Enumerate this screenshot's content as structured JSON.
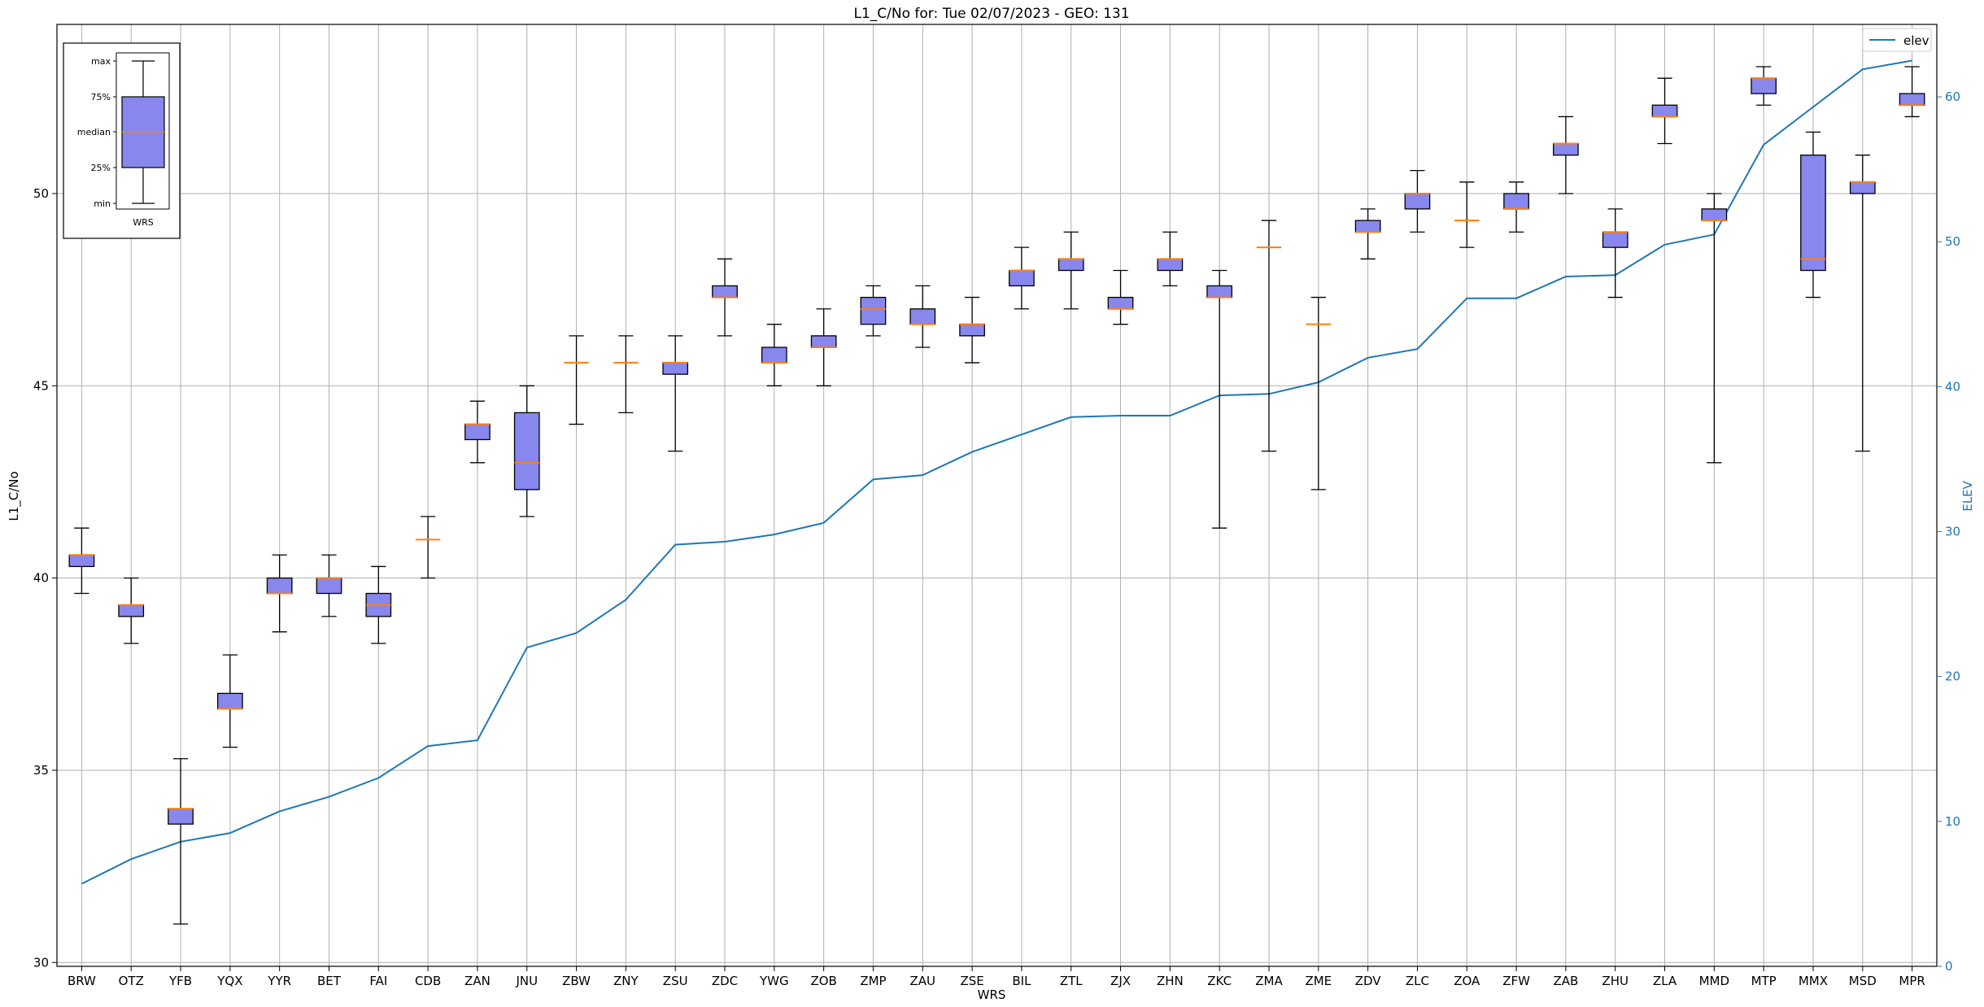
{
  "chart_data": {
    "type": "boxplot",
    "title": "L1_C/No for: Tue 02/07/2023 - GEO: 131",
    "xlabel": "WRS",
    "ylabel": "L1_C/No",
    "ylabel_right": "ELEV",
    "ylim": [
      29.9,
      54.4
    ],
    "ylim_right": [
      0,
      65
    ],
    "yticks": [
      30,
      35,
      40,
      45,
      50
    ],
    "yticks_right": [
      0,
      10,
      20,
      30,
      40,
      50,
      60
    ],
    "grid": true,
    "legend": {
      "placement": "top-right",
      "entries": [
        "elev"
      ]
    },
    "colors": {
      "box_fill": "#8787ee",
      "median": "#ff7f0e",
      "elev_line": "#1f77b4",
      "grid": "#b0b0b0"
    },
    "categories": [
      "BRW",
      "OTZ",
      "YFB",
      "YQX",
      "YYR",
      "BET",
      "FAI",
      "CDB",
      "ZAN",
      "JNU",
      "ZBW",
      "ZNY",
      "ZSU",
      "ZDC",
      "YWG",
      "ZOB",
      "ZMP",
      "ZAU",
      "ZSE",
      "BIL",
      "ZTL",
      "ZJX",
      "ZHN",
      "ZKC",
      "ZMA",
      "ZME",
      "ZDV",
      "ZLC",
      "ZOA",
      "ZFW",
      "ZAB",
      "ZHU",
      "ZLA",
      "MMD",
      "MTP",
      "MMX",
      "MSD",
      "MPR"
    ],
    "boxes": [
      {
        "min": 39.6,
        "q1": 40.3,
        "median": 40.6,
        "q3": 40.6,
        "max": 41.3
      },
      {
        "min": 38.3,
        "q1": 39.0,
        "median": 39.3,
        "q3": 39.3,
        "max": 40.0
      },
      {
        "min": 31.0,
        "q1": 33.6,
        "median": 34.0,
        "q3": 34.0,
        "max": 35.3
      },
      {
        "min": 35.6,
        "q1": 36.6,
        "median": 36.6,
        "q3": 37.0,
        "max": 38.0
      },
      {
        "min": 38.6,
        "q1": 39.6,
        "median": 39.6,
        "q3": 40.0,
        "max": 40.6
      },
      {
        "min": 39.0,
        "q1": 39.6,
        "median": 40.0,
        "q3": 40.0,
        "max": 40.6
      },
      {
        "min": 38.3,
        "q1": 39.0,
        "median": 39.3,
        "q3": 39.6,
        "max": 40.3
      },
      {
        "min": 40.0,
        "q1": 41.0,
        "median": 41.0,
        "q3": 41.0,
        "max": 41.6
      },
      {
        "min": 43.0,
        "q1": 43.6,
        "median": 44.0,
        "q3": 44.0,
        "max": 44.6
      },
      {
        "min": 41.6,
        "q1": 42.3,
        "median": 43.0,
        "q3": 44.3,
        "max": 45.0
      },
      {
        "min": 44.0,
        "q1": 45.6,
        "median": 45.6,
        "q3": 45.6,
        "max": 46.3
      },
      {
        "min": 44.3,
        "q1": 45.6,
        "median": 45.6,
        "q3": 45.6,
        "max": 46.3
      },
      {
        "min": 43.3,
        "q1": 45.3,
        "median": 45.6,
        "q3": 45.6,
        "max": 46.3
      },
      {
        "min": 46.3,
        "q1": 47.3,
        "median": 47.3,
        "q3": 47.6,
        "max": 48.3
      },
      {
        "min": 45.0,
        "q1": 45.6,
        "median": 45.6,
        "q3": 46.0,
        "max": 46.6
      },
      {
        "min": 45.0,
        "q1": 46.0,
        "median": 46.0,
        "q3": 46.3,
        "max": 47.0
      },
      {
        "min": 46.3,
        "q1": 46.6,
        "median": 47.0,
        "q3": 47.3,
        "max": 47.6
      },
      {
        "min": 46.0,
        "q1": 46.6,
        "median": 46.6,
        "q3": 47.0,
        "max": 47.6
      },
      {
        "min": 45.6,
        "q1": 46.3,
        "median": 46.6,
        "q3": 46.6,
        "max": 47.3
      },
      {
        "min": 47.0,
        "q1": 47.6,
        "median": 48.0,
        "q3": 48.0,
        "max": 48.6
      },
      {
        "min": 47.0,
        "q1": 48.0,
        "median": 48.3,
        "q3": 48.3,
        "max": 49.0
      },
      {
        "min": 46.6,
        "q1": 47.0,
        "median": 47.0,
        "q3": 47.3,
        "max": 48.0
      },
      {
        "min": 47.6,
        "q1": 48.0,
        "median": 48.3,
        "q3": 48.3,
        "max": 49.0
      },
      {
        "min": 41.3,
        "q1": 47.3,
        "median": 47.3,
        "q3": 47.6,
        "max": 48.0
      },
      {
        "min": 43.3,
        "q1": 48.6,
        "median": 48.6,
        "q3": 48.6,
        "max": 49.3
      },
      {
        "min": 42.3,
        "q1": 46.6,
        "median": 46.6,
        "q3": 46.6,
        "max": 47.3
      },
      {
        "min": 48.3,
        "q1": 49.0,
        "median": 49.0,
        "q3": 49.3,
        "max": 49.6
      },
      {
        "min": 49.0,
        "q1": 49.6,
        "median": 50.0,
        "q3": 50.0,
        "max": 50.6
      },
      {
        "min": 48.6,
        "q1": 49.3,
        "median": 49.3,
        "q3": 49.3,
        "max": 50.3
      },
      {
        "min": 49.0,
        "q1": 49.6,
        "median": 49.6,
        "q3": 50.0,
        "max": 50.3
      },
      {
        "min": 50.0,
        "q1": 51.0,
        "median": 51.3,
        "q3": 51.3,
        "max": 52.0
      },
      {
        "min": 47.3,
        "q1": 48.6,
        "median": 49.0,
        "q3": 49.0,
        "max": 49.6
      },
      {
        "min": 51.3,
        "q1": 52.0,
        "median": 52.0,
        "q3": 52.3,
        "max": 53.0
      },
      {
        "min": 43.0,
        "q1": 49.3,
        "median": 49.3,
        "q3": 49.6,
        "max": 50.0
      },
      {
        "min": 52.3,
        "q1": 52.6,
        "median": 53.0,
        "q3": 53.0,
        "max": 53.3
      },
      {
        "min": 47.3,
        "q1": 48.0,
        "median": 48.3,
        "q3": 51.0,
        "max": 51.6
      },
      {
        "min": 43.3,
        "q1": 50.0,
        "median": 50.3,
        "q3": 50.3,
        "max": 51.0
      },
      {
        "min": 52.0,
        "q1": 52.3,
        "median": 52.3,
        "q3": 52.6,
        "max": 53.3
      }
    ],
    "elev": {
      "name": "elev",
      "values": [
        5.7,
        7.4,
        8.6,
        9.2,
        10.7,
        11.7,
        13.0,
        15.2,
        15.6,
        22.0,
        23.0,
        25.3,
        29.1,
        29.3,
        29.8,
        30.6,
        33.6,
        33.9,
        35.5,
        36.7,
        37.9,
        38.0,
        38.0,
        39.4,
        39.5,
        40.3,
        42.0,
        42.6,
        46.1,
        46.1,
        47.6,
        47.7,
        49.8,
        50.5,
        56.7,
        59.3,
        61.9,
        62.5
      ]
    }
  },
  "inset": {
    "labels": [
      "max",
      "75%",
      "median",
      "25%",
      "min"
    ],
    "xlabel": "WRS"
  }
}
